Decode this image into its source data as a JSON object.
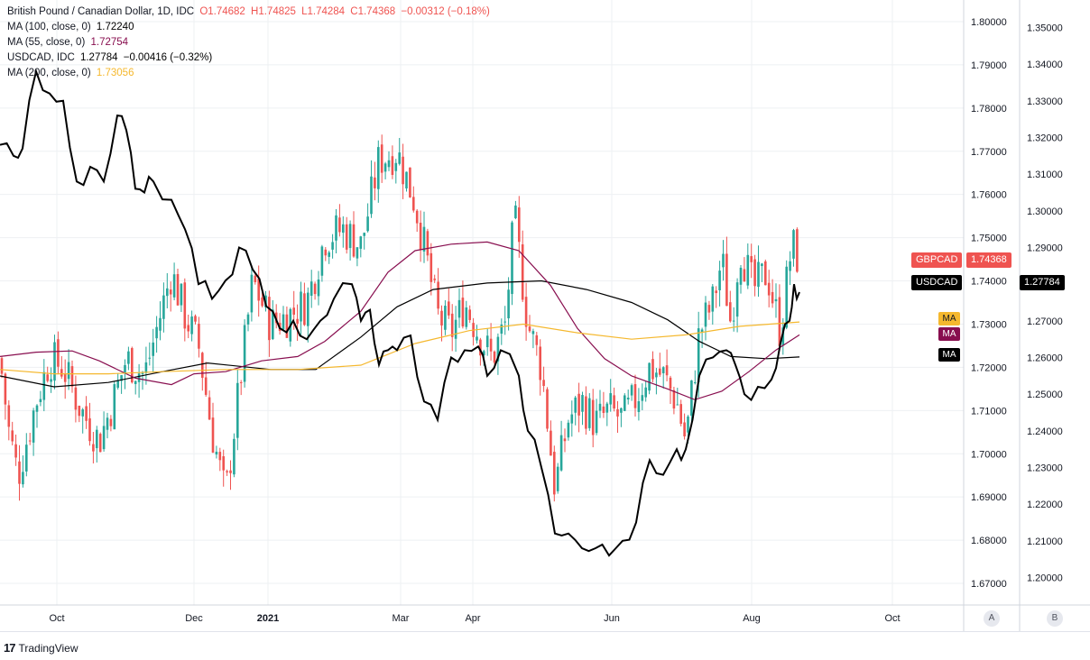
{
  "legend": {
    "main": {
      "title": "British Pound / Canadian Dollar, 1D, IDC",
      "open": "O1.74682",
      "high": "H1.74825",
      "low": "L1.74284",
      "close": "C1.74368",
      "change": "−0.00312 (−0.18%)"
    },
    "ma100": {
      "label": "MA (100, close, 0)",
      "value": "1.72240"
    },
    "ma55": {
      "label": "MA (55, close, 0)",
      "value": "1.72754"
    },
    "compare": {
      "label": "USDCAD, IDC",
      "value": "1.27784",
      "change": "−0.00416 (−0.32%)"
    },
    "ma200": {
      "label": "MA (200, close, 0)",
      "value": "1.73056"
    }
  },
  "tags": {
    "gbpcad_symbol": "GBPCAD",
    "gbpcad_price": "1.74368",
    "usdcad_symbol": "USDCAD",
    "usdcad_price": "1.27784",
    "ma": "MA"
  },
  "buttons": {
    "scale_a": "A",
    "scale_b": "B"
  },
  "branding": {
    "name": "TradingView"
  },
  "colors": {
    "up": "#26a69a",
    "down": "#ef5350",
    "usdcad": "#000000",
    "ma100": "#000000",
    "ma55": "#880e4f",
    "ma200": "#f5b82e",
    "grid": "#eef0f3"
  },
  "chart_data": {
    "type": "candlestick",
    "symbol": "British Pound / Canadian Dollar",
    "interval": "1D",
    "x_ticks": [
      "Oct",
      "Dec",
      "2021",
      "Mar",
      "Apr",
      "Jun",
      "Aug",
      "Oct"
    ],
    "left_axis": {
      "name": "GBPCAD",
      "range": [
        1.665,
        1.805
      ],
      "ticks": [
        "1.80000",
        "1.79000",
        "1.78000",
        "1.77000",
        "1.76000",
        "1.75000",
        "1.74000",
        "1.73000",
        "1.72000",
        "1.71000",
        "1.70000",
        "1.69000",
        "1.68000",
        "1.67000"
      ]
    },
    "right_axis": {
      "name": "USDCAD",
      "range": [
        1.1925,
        1.3575
      ],
      "ticks": [
        "1.35000",
        "1.34000",
        "1.33000",
        "1.32000",
        "1.31000",
        "1.30000",
        "1.29000",
        "1.28000",
        "1.27000",
        "1.26000",
        "1.25000",
        "1.24000",
        "1.23000",
        "1.22000",
        "1.21000",
        "1.20000"
      ]
    },
    "last_prices": {
      "GBPCAD": 1.74368,
      "USDCAD": 1.27784
    },
    "gbpcad_close_trace": [
      [
        0,
        1.722
      ],
      [
        10,
        1.705
      ],
      [
        20,
        1.695
      ],
      [
        40,
        1.712
      ],
      [
        55,
        1.722
      ],
      [
        70,
        1.72
      ],
      [
        90,
        1.71
      ],
      [
        110,
        1.703
      ],
      [
        125,
        1.712
      ],
      [
        140,
        1.722
      ],
      [
        160,
        1.718
      ],
      [
        175,
        1.73
      ],
      [
        190,
        1.742
      ],
      [
        205,
        1.732
      ],
      [
        220,
        1.725
      ],
      [
        235,
        1.705
      ],
      [
        250,
        1.69
      ],
      [
        265,
        1.715
      ],
      [
        280,
        1.74
      ],
      [
        300,
        1.73
      ],
      [
        320,
        1.732
      ],
      [
        340,
        1.735
      ],
      [
        360,
        1.75
      ],
      [
        380,
        1.752
      ],
      [
        400,
        1.748
      ],
      [
        420,
        1.768
      ],
      [
        440,
        1.77
      ],
      [
        460,
        1.758
      ],
      [
        470,
        1.748
      ],
      [
        485,
        1.732
      ],
      [
        500,
        1.728
      ],
      [
        515,
        1.735
      ],
      [
        530,
        1.728
      ],
      [
        545,
        1.722
      ],
      [
        560,
        1.73
      ],
      [
        570,
        1.755
      ],
      [
        585,
        1.73
      ],
      [
        600,
        1.72
      ],
      [
        615,
        1.692
      ],
      [
        630,
        1.708
      ],
      [
        645,
        1.712
      ],
      [
        660,
        1.707
      ],
      [
        675,
        1.71
      ],
      [
        690,
        1.708
      ],
      [
        705,
        1.713
      ],
      [
        720,
        1.72
      ],
      [
        735,
        1.718
      ],
      [
        750,
        1.712
      ],
      [
        760,
        1.703
      ],
      [
        775,
        1.728
      ],
      [
        790,
        1.735
      ],
      [
        800,
        1.745
      ],
      [
        810,
        1.73
      ],
      [
        820,
        1.748
      ],
      [
        835,
        1.738
      ],
      [
        850,
        1.742
      ],
      [
        865,
        1.728
      ],
      [
        875,
        1.745
      ],
      [
        880,
        1.748
      ],
      [
        886,
        1.7437
      ]
    ],
    "usdcad_close_trace": [
      [
        0,
        1.318
      ],
      [
        15,
        1.315
      ],
      [
        25,
        1.317
      ],
      [
        40,
        1.338
      ],
      [
        55,
        1.332
      ],
      [
        70,
        1.33
      ],
      [
        85,
        1.308
      ],
      [
        100,
        1.312
      ],
      [
        115,
        1.308
      ],
      [
        130,
        1.326
      ],
      [
        140,
        1.322
      ],
      [
        150,
        1.306
      ],
      [
        160,
        1.305
      ],
      [
        170,
        1.308
      ],
      [
        190,
        1.303
      ],
      [
        205,
        1.295
      ],
      [
        220,
        1.28
      ],
      [
        235,
        1.276
      ],
      [
        250,
        1.281
      ],
      [
        265,
        1.29
      ],
      [
        280,
        1.284
      ],
      [
        295,
        1.274
      ],
      [
        310,
        1.268
      ],
      [
        325,
        1.27
      ],
      [
        340,
        1.265
      ],
      [
        355,
        1.27
      ],
      [
        370,
        1.276
      ],
      [
        390,
        1.28
      ],
      [
        400,
        1.27
      ],
      [
        410,
        1.273
      ],
      [
        420,
        1.258
      ],
      [
        430,
        1.262
      ],
      [
        440,
        1.262
      ],
      [
        455,
        1.266
      ],
      [
        470,
        1.248
      ],
      [
        485,
        1.243
      ],
      [
        500,
        1.26
      ],
      [
        515,
        1.262
      ],
      [
        530,
        1.263
      ],
      [
        540,
        1.255
      ],
      [
        555,
        1.262
      ],
      [
        575,
        1.255
      ],
      [
        585,
        1.24
      ],
      [
        600,
        1.23
      ],
      [
        615,
        1.212
      ],
      [
        630,
        1.212
      ],
      [
        645,
        1.208
      ],
      [
        660,
        1.208
      ],
      [
        675,
        1.206
      ],
      [
        690,
        1.21
      ],
      [
        705,
        1.215
      ],
      [
        720,
        1.232
      ],
      [
        735,
        1.228
      ],
      [
        750,
        1.235
      ],
      [
        760,
        1.235
      ],
      [
        775,
        1.255
      ],
      [
        790,
        1.26
      ],
      [
        805,
        1.262
      ],
      [
        815,
        1.258
      ],
      [
        825,
        1.25
      ],
      [
        840,
        1.252
      ],
      [
        855,
        1.254
      ],
      [
        865,
        1.264
      ],
      [
        875,
        1.27
      ],
      [
        880,
        1.28
      ],
      [
        886,
        1.27784
      ]
    ],
    "series": [
      {
        "name": "MA (100, close, 0)",
        "value": 1.7224,
        "points": [
          [
            0,
            1.718
          ],
          [
            60,
            1.7155
          ],
          [
            120,
            1.7165
          ],
          [
            180,
            1.719
          ],
          [
            230,
            1.721
          ],
          [
            300,
            1.7195
          ],
          [
            350,
            1.7195
          ],
          [
            400,
            1.727
          ],
          [
            440,
            1.734
          ],
          [
            480,
            1.738
          ],
          [
            540,
            1.7395
          ],
          [
            600,
            1.74
          ],
          [
            650,
            1.738
          ],
          [
            700,
            1.735
          ],
          [
            740,
            1.731
          ],
          [
            775,
            1.726
          ],
          [
            810,
            1.7225
          ],
          [
            850,
            1.722
          ],
          [
            886,
            1.7224
          ]
        ]
      },
      {
        "name": "MA (55, close, 0)",
        "value": 1.72754,
        "points": [
          [
            0,
            1.7225
          ],
          [
            40,
            1.7235
          ],
          [
            80,
            1.7238
          ],
          [
            110,
            1.7215
          ],
          [
            150,
            1.7175
          ],
          [
            190,
            1.716
          ],
          [
            215,
            1.7185
          ],
          [
            250,
            1.719
          ],
          [
            290,
            1.7215
          ],
          [
            330,
            1.7225
          ],
          [
            360,
            1.726
          ],
          [
            400,
            1.733
          ],
          [
            430,
            1.742
          ],
          [
            460,
            1.747
          ],
          [
            500,
            1.7485
          ],
          [
            540,
            1.749
          ],
          [
            575,
            1.747
          ],
          [
            610,
            1.739
          ],
          [
            640,
            1.729
          ],
          [
            670,
            1.722
          ],
          [
            700,
            1.718
          ],
          [
            740,
            1.715
          ],
          [
            770,
            1.7125
          ],
          [
            800,
            1.7145
          ],
          [
            830,
            1.719
          ],
          [
            860,
            1.724
          ],
          [
            886,
            1.7275
          ]
        ]
      },
      {
        "name": "MA (200, close, 0)",
        "value": 1.73056,
        "points": [
          [
            0,
            1.7195
          ],
          [
            60,
            1.7185
          ],
          [
            120,
            1.7185
          ],
          [
            180,
            1.719
          ],
          [
            250,
            1.7195
          ],
          [
            330,
            1.7195
          ],
          [
            400,
            1.7205
          ],
          [
            460,
            1.7255
          ],
          [
            520,
            1.7285
          ],
          [
            580,
            1.73
          ],
          [
            640,
            1.728
          ],
          [
            700,
            1.7265
          ],
          [
            760,
            1.7275
          ],
          [
            820,
            1.7295
          ],
          [
            886,
            1.7305
          ]
        ]
      }
    ]
  }
}
